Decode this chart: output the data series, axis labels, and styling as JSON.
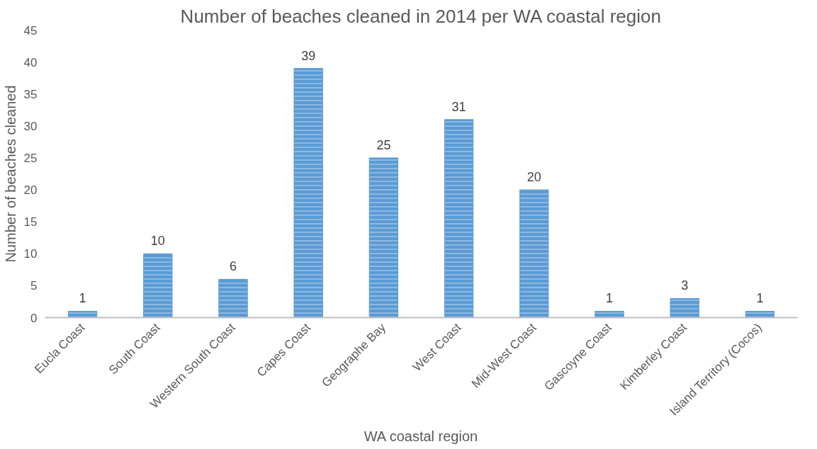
{
  "chart_data": {
    "type": "bar",
    "title": "Number of beaches cleaned in 2014 per WA coastal region",
    "xlabel": "WA coastal region",
    "ylabel": "Number of beaches cleaned",
    "categories": [
      "Eucla Coast",
      "South Coast",
      "Western South Coast",
      "Capes Coast",
      "Geographe Bay",
      "West Coast",
      "Mid-West Coast",
      "Gascoyne Coast",
      "Kimberley Coast",
      "Island Territory (Cocos)"
    ],
    "values": [
      1,
      10,
      6,
      39,
      25,
      31,
      20,
      1,
      3,
      1
    ],
    "color": "#5b9bd5",
    "ylim": [
      0,
      45
    ],
    "yticks": [
      0,
      5,
      10,
      15,
      20,
      25,
      30,
      35,
      40,
      45
    ],
    "grid": false,
    "data_labels": true
  }
}
